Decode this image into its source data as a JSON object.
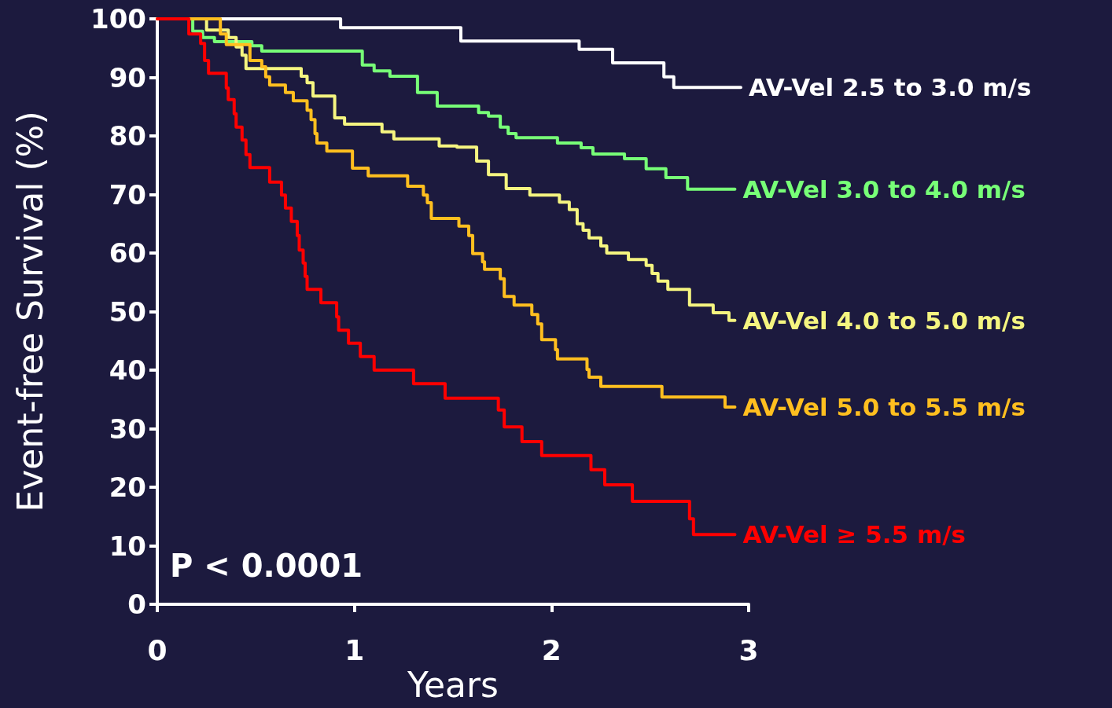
{
  "chart_data": {
    "type": "step",
    "xlabel": "Years",
    "ylabel": "Event-free Survival (%)",
    "xlim": [
      0,
      3
    ],
    "xticks": [
      0,
      1,
      2,
      3
    ],
    "ylim": [
      0,
      100
    ],
    "yticks": [
      0,
      10,
      20,
      30,
      40,
      50,
      60,
      70,
      80,
      90,
      100
    ],
    "grid": false,
    "legend": false,
    "marker": "none",
    "line_style": "solid",
    "annotations": [
      "P < 0.0001"
    ],
    "series": [
      {
        "name": "AV-Vel 2.5 to 3.0 m/s",
        "color": "#ffffff",
        "x": [
          0,
          0.93,
          1.54,
          2.14,
          2.31,
          2.57,
          2.62,
          2.96
        ],
        "values": [
          100,
          98.5,
          96.2,
          94.8,
          92.5,
          90.1,
          88.3,
          88.3
        ]
      },
      {
        "name": "AV-Vel 3.0 to 4.0 m/s",
        "color": "#77ff77",
        "x": [
          0,
          0.18,
          0.23,
          0.29,
          0.48,
          0.53,
          1.04,
          1.1,
          1.18,
          1.32,
          1.42,
          1.63,
          1.68,
          1.74,
          1.78,
          1.82,
          2.03,
          2.15,
          2.21,
          2.37,
          2.48,
          2.58,
          2.69,
          2.93
        ],
        "values": [
          100,
          97.9,
          96.8,
          96.1,
          95.4,
          94.5,
          92.1,
          91.1,
          90.2,
          87.4,
          85.1,
          84.0,
          83.4,
          81.5,
          80.4,
          79.7,
          78.8,
          78.0,
          76.9,
          76.1,
          74.4,
          72.9,
          70.9,
          70.9
        ]
      },
      {
        "name": "AV-Vel 4.0 to 5.0 m/s",
        "color": "#f5f580",
        "x": [
          0,
          0.25,
          0.36,
          0.4,
          0.43,
          0.45,
          0.73,
          0.76,
          0.79,
          0.9,
          0.95,
          1.14,
          1.2,
          1.43,
          1.52,
          1.62,
          1.68,
          1.77,
          1.89,
          2.04,
          2.09,
          2.13,
          2.16,
          2.19,
          2.25,
          2.28,
          2.39,
          2.48,
          2.51,
          2.54,
          2.59,
          2.7,
          2.82,
          2.9,
          2.93
        ],
        "values": [
          100,
          98.1,
          96.8,
          95.2,
          93.8,
          91.5,
          90.2,
          89.1,
          86.8,
          83.1,
          82.0,
          80.7,
          79.5,
          78.3,
          78.1,
          75.7,
          73.4,
          71.0,
          69.9,
          68.7,
          67.4,
          65.0,
          63.9,
          62.6,
          61.2,
          60.0,
          58.9,
          57.9,
          56.5,
          55.2,
          53.8,
          51.1,
          49.8,
          48.5,
          48.5
        ]
      },
      {
        "name": "AV-Vel 5.0 to 5.5 m/s",
        "color": "#ffbf1f",
        "x": [
          0,
          0.32,
          0.35,
          0.47,
          0.53,
          0.55,
          0.57,
          0.65,
          0.69,
          0.76,
          0.78,
          0.8,
          0.81,
          0.86,
          0.99,
          1.07,
          1.27,
          1.35,
          1.37,
          1.39,
          1.53,
          1.58,
          1.6,
          1.65,
          1.66,
          1.74,
          1.76,
          1.81,
          1.9,
          1.93,
          1.95,
          2.02,
          2.03,
          2.18,
          2.19,
          2.25,
          2.56,
          2.88,
          2.93
        ],
        "values": [
          100,
          97.4,
          95.6,
          92.9,
          91.8,
          90.1,
          88.7,
          87.4,
          86.0,
          84.4,
          82.8,
          80.4,
          78.8,
          77.4,
          74.5,
          73.2,
          71.4,
          69.9,
          68.6,
          65.9,
          64.6,
          63.0,
          59.9,
          58.5,
          57.2,
          55.6,
          52.6,
          51.1,
          49.5,
          47.9,
          45.2,
          43.5,
          41.9,
          40.1,
          38.8,
          37.2,
          35.4,
          33.7,
          33.7
        ]
      },
      {
        "name": "AV-Vel ≥ 5.5 m/s",
        "color": "#ff0000",
        "x": [
          0,
          0.16,
          0.22,
          0.24,
          0.26,
          0.35,
          0.36,
          0.39,
          0.4,
          0.43,
          0.45,
          0.47,
          0.57,
          0.63,
          0.65,
          0.68,
          0.71,
          0.72,
          0.74,
          0.75,
          0.76,
          0.83,
          0.91,
          0.92,
          0.97,
          1.03,
          1.1,
          1.3,
          1.46,
          1.73,
          1.76,
          1.85,
          1.95,
          2.2,
          2.27,
          2.41,
          2.7,
          2.72,
          2.93
        ],
        "values": [
          100,
          97.4,
          95.8,
          92.9,
          90.7,
          88.2,
          86.2,
          83.8,
          81.5,
          79.3,
          76.8,
          74.6,
          72.1,
          69.9,
          67.7,
          65.4,
          63.0,
          60.5,
          58.3,
          56.0,
          53.8,
          51.5,
          49.1,
          46.8,
          44.6,
          42.3,
          40.0,
          37.7,
          35.2,
          33.2,
          30.3,
          27.8,
          25.4,
          23.0,
          20.4,
          17.6,
          14.6,
          11.9,
          11.9
        ]
      }
    ]
  }
}
